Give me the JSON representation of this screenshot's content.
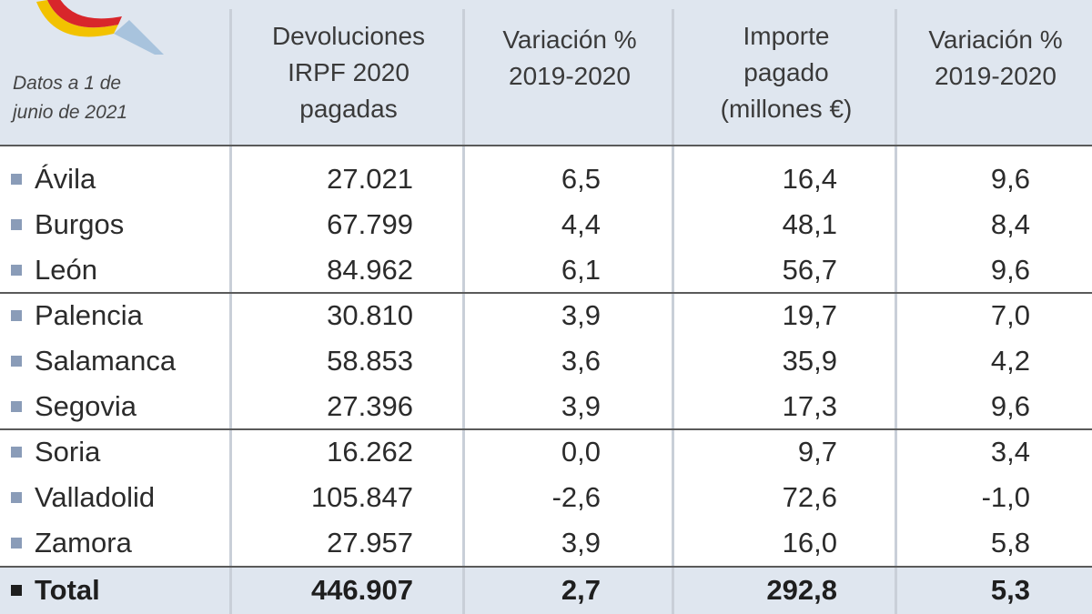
{
  "header": {
    "date_note_line1": "Datos a 1 de",
    "date_note_line2": "junio de 2021",
    "col1": [
      "Devoluciones",
      "IRPF 2020",
      "pagadas"
    ],
    "col2": [
      "Variación %",
      "2019-2020"
    ],
    "col3": [
      "Importe",
      "pagado",
      "(millones €)"
    ],
    "col4": [
      "Variación %",
      "2019-2020"
    ]
  },
  "colors": {
    "header_bg": "#dfe6ef",
    "bullet": "#8a9cb8",
    "logo_yellow": "#f2c200",
    "logo_red": "#d8262b",
    "logo_blue": "#a8c3dd"
  },
  "rows": [
    {
      "name": "Ávila",
      "devoluciones": "27.021",
      "var1": "6,5",
      "importe": "16,4",
      "var2": "9,6"
    },
    {
      "name": "Burgos",
      "devoluciones": "67.799",
      "var1": "4,4",
      "importe": "48,1",
      "var2": "8,4"
    },
    {
      "name": "León",
      "devoluciones": "84.962",
      "var1": "6,1",
      "importe": "56,7",
      "var2": "9,6"
    },
    {
      "name": "Palencia",
      "devoluciones": "30.810",
      "var1": "3,9",
      "importe": "19,7",
      "var2": "7,0"
    },
    {
      "name": "Salamanca",
      "devoluciones": "58.853",
      "var1": "3,6",
      "importe": "35,9",
      "var2": "4,2"
    },
    {
      "name": "Segovia",
      "devoluciones": "27.396",
      "var1": "3,9",
      "importe": "17,3",
      "var2": "9,6"
    },
    {
      "name": "Soria",
      "devoluciones": "16.262",
      "var1": "0,0",
      "importe": "9,7",
      "var2": "3,4"
    },
    {
      "name": "Valladolid",
      "devoluciones": "105.847",
      "var1": "-2,6",
      "importe": "72,6",
      "var2": "-1,0"
    },
    {
      "name": "Zamora",
      "devoluciones": "27.957",
      "var1": "3,9",
      "importe": "16,0",
      "var2": "5,8"
    }
  ],
  "total": {
    "name": "Total",
    "devoluciones": "446.907",
    "var1": "2,7",
    "importe": "292,8",
    "var2": "5,3"
  },
  "chart_data": {
    "type": "table",
    "title": "",
    "columns": [
      "",
      "Devoluciones IRPF 2020 pagadas",
      "Variación % 2019-2020",
      "Importe pagado (millones €)",
      "Variación % 2019-2020"
    ],
    "rows": [
      [
        "Ávila",
        27021,
        6.5,
        16.4,
        9.6
      ],
      [
        "Burgos",
        67799,
        4.4,
        48.1,
        8.4
      ],
      [
        "León",
        84962,
        6.1,
        56.7,
        9.6
      ],
      [
        "Palencia",
        30810,
        3.9,
        19.7,
        7.0
      ],
      [
        "Salamanca",
        58853,
        3.6,
        35.9,
        4.2
      ],
      [
        "Segovia",
        27396,
        3.9,
        17.3,
        9.6
      ],
      [
        "Soria",
        16262,
        0.0,
        9.7,
        3.4
      ],
      [
        "Valladolid",
        105847,
        -2.6,
        72.6,
        -1.0
      ],
      [
        "Zamora",
        27957,
        3.9,
        16.0,
        5.8
      ],
      [
        "Total",
        446907,
        2.7,
        292.8,
        5.3
      ]
    ]
  }
}
